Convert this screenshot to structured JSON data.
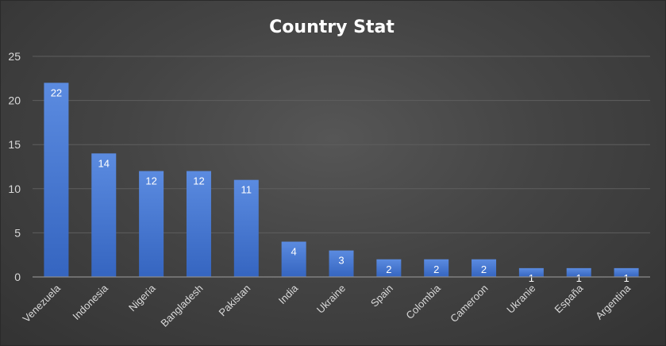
{
  "chart_data": {
    "type": "bar",
    "title": "Country Stat",
    "xlabel": "",
    "ylabel": "",
    "ylim": [
      0,
      25
    ],
    "yticks": [
      0,
      5,
      10,
      15,
      20,
      25
    ],
    "grid": true,
    "legend": "none",
    "categories": [
      "Venezuela",
      "Indonesia",
      "Nigeria",
      "Bangladesh",
      "Pakistan",
      "India",
      "Ukraine",
      "Spain",
      "Colombia",
      "Cameroon",
      "Ukranie",
      "España",
      "Argentina"
    ],
    "values": [
      22,
      14,
      12,
      12,
      11,
      4,
      3,
      2,
      2,
      2,
      1,
      1,
      1
    ],
    "data_labels": true,
    "colors": {
      "bar_top": "#5b8be0",
      "bar_bottom": "#3565c0",
      "grid": "#5e5e5e",
      "axis": "#8c8c8c",
      "text": "#d9d9d9",
      "title": "#ffffff"
    }
  }
}
